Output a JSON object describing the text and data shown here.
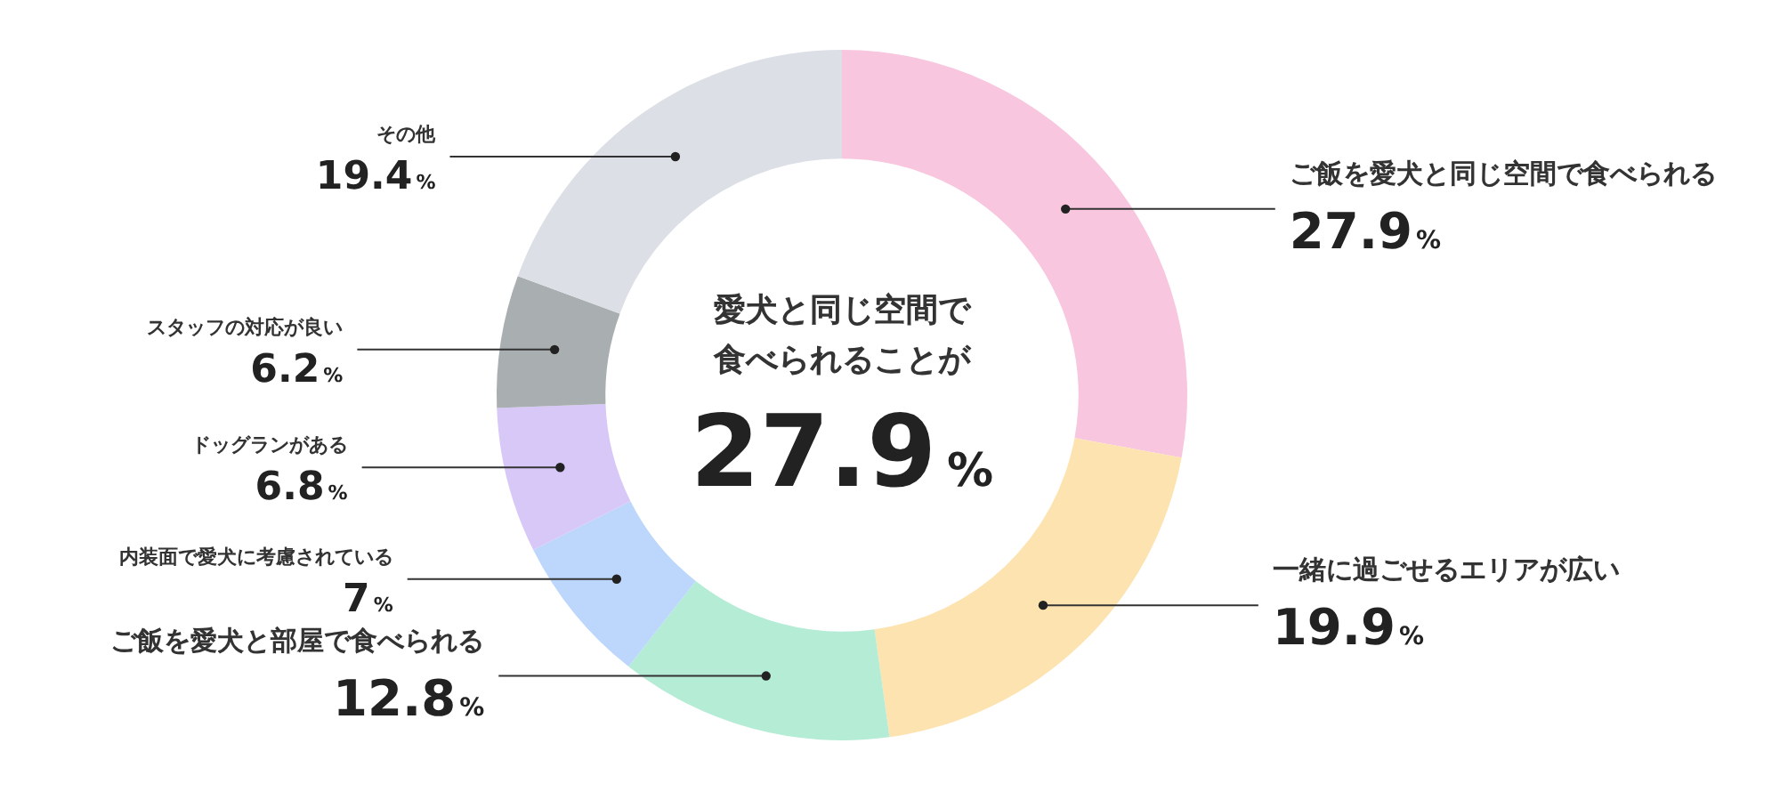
{
  "chart_data": {
    "type": "donut",
    "title": "愛犬と同じ空間で食べられることが",
    "annotations": [
      "27.9%"
    ],
    "categories": [
      "ご飯を愛犬と同じ空間で食べられる",
      "一緒に過ごせるエリアが広い",
      "ご飯を愛犬と部屋で食べられる",
      "内装面で愛犬に考慮されている",
      "ドッグランがある",
      "スタッフの対応が良い",
      "その他"
    ],
    "values": [
      27.9,
      19.9,
      12.8,
      7,
      6.8,
      6.2,
      19.4
    ],
    "colors": [
      "#f8c6df",
      "#fde3b0",
      "#b4ecd6",
      "#bcd7fb",
      "#d8c8f8",
      "#a9aeb1",
      "#dcdfe6"
    ],
    "value_labels": [
      "27.9%",
      "19.9%",
      "12.8%",
      "7%",
      "6.8%",
      "6.2%",
      "19.4%"
    ]
  }
}
